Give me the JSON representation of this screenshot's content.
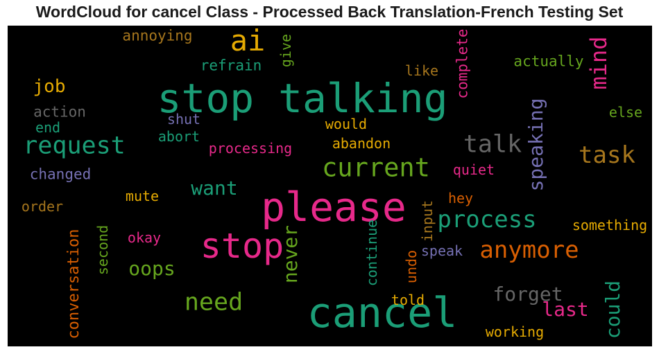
{
  "title": "WordCloud for cancel Class - Processed Back Translation-French Testing Set",
  "colors": {
    "green": "#1b9e77",
    "pink": "#e7298a",
    "orange": "#d95f02",
    "purple": "#7570b3",
    "lime": "#66a61e",
    "yellow": "#e6ab02",
    "brown": "#a6761d",
    "gray": "#666666",
    "background": "#000000"
  },
  "chart_data": {
    "type": "wordcloud",
    "words": [
      {
        "text": "cancel",
        "color": "#1b9e77",
        "size": 60,
        "rotate": false
      },
      {
        "text": "stop talking",
        "color": "#1b9e77",
        "size": 58,
        "rotate": false
      },
      {
        "text": "please",
        "color": "#e7298a",
        "size": 58,
        "rotate": false
      },
      {
        "text": "stop",
        "color": "#e7298a",
        "size": 50,
        "rotate": false
      },
      {
        "text": "ai",
        "color": "#e6ab02",
        "size": 42,
        "rotate": false
      },
      {
        "text": "current",
        "color": "#66a61e",
        "size": 37,
        "rotate": false
      },
      {
        "text": "request",
        "color": "#1b9e77",
        "size": 35,
        "rotate": false
      },
      {
        "text": "need",
        "color": "#66a61e",
        "size": 35,
        "rotate": false
      },
      {
        "text": "talk",
        "color": "#666666",
        "size": 35,
        "rotate": false
      },
      {
        "text": "process",
        "color": "#1b9e77",
        "size": 34,
        "rotate": false
      },
      {
        "text": "anymore",
        "color": "#d95f02",
        "size": 34,
        "rotate": false
      },
      {
        "text": "task",
        "color": "#a6761d",
        "size": 34,
        "rotate": false
      },
      {
        "text": "mind",
        "color": "#e7298a",
        "size": 32,
        "rotate": true
      },
      {
        "text": "speaking",
        "color": "#7570b3",
        "size": 28,
        "rotate": true
      },
      {
        "text": "forget",
        "color": "#666666",
        "size": 28,
        "rotate": false
      },
      {
        "text": "want",
        "color": "#1b9e77",
        "size": 28,
        "rotate": false
      },
      {
        "text": "oops",
        "color": "#66a61e",
        "size": 28,
        "rotate": false
      },
      {
        "text": "last",
        "color": "#e7298a",
        "size": 28,
        "rotate": false
      },
      {
        "text": "never",
        "color": "#66a61e",
        "size": 28,
        "rotate": true
      },
      {
        "text": "could",
        "color": "#1b9e77",
        "size": 28,
        "rotate": true
      },
      {
        "text": "job",
        "color": "#e6ab02",
        "size": 26,
        "rotate": false
      },
      {
        "text": "conversation",
        "color": "#d95f02",
        "size": 22,
        "rotate": true
      },
      {
        "text": "actually",
        "color": "#66a61e",
        "size": 21,
        "rotate": false
      },
      {
        "text": "complete",
        "color": "#e7298a",
        "size": 21,
        "rotate": true
      },
      {
        "text": "refrain",
        "color": "#1b9e77",
        "size": 21,
        "rotate": false
      },
      {
        "text": "annoying",
        "color": "#a6761d",
        "size": 21,
        "rotate": false
      },
      {
        "text": "action",
        "color": "#666666",
        "size": 21,
        "rotate": false
      },
      {
        "text": "changed",
        "color": "#7570b3",
        "size": 21,
        "rotate": false
      },
      {
        "text": "something",
        "color": "#e6ab02",
        "size": 20,
        "rotate": false
      },
      {
        "text": "working",
        "color": "#e6ab02",
        "size": 20,
        "rotate": false
      },
      {
        "text": "continue",
        "color": "#1b9e77",
        "size": 20,
        "rotate": true
      },
      {
        "text": "second",
        "color": "#66a61e",
        "size": 20,
        "rotate": true
      },
      {
        "text": "give",
        "color": "#66a61e",
        "size": 20,
        "rotate": true
      },
      {
        "text": "like",
        "color": "#a6761d",
        "size": 20,
        "rotate": false
      },
      {
        "text": "else",
        "color": "#66a61e",
        "size": 20,
        "rotate": false
      },
      {
        "text": "end",
        "color": "#1b9e77",
        "size": 20,
        "rotate": false
      },
      {
        "text": "shut",
        "color": "#7570b3",
        "size": 20,
        "rotate": false
      },
      {
        "text": "abort",
        "color": "#1b9e77",
        "size": 20,
        "rotate": false
      },
      {
        "text": "processing",
        "color": "#e7298a",
        "size": 20,
        "rotate": false
      },
      {
        "text": "would",
        "color": "#e6ab02",
        "size": 20,
        "rotate": false
      },
      {
        "text": "abandon",
        "color": "#e6ab02",
        "size": 20,
        "rotate": false
      },
      {
        "text": "quiet",
        "color": "#e7298a",
        "size": 20,
        "rotate": false
      },
      {
        "text": "hey",
        "color": "#d95f02",
        "size": 20,
        "rotate": false
      },
      {
        "text": "mute",
        "color": "#e6ab02",
        "size": 20,
        "rotate": false
      },
      {
        "text": "order",
        "color": "#a6761d",
        "size": 20,
        "rotate": false
      },
      {
        "text": "okay",
        "color": "#e7298a",
        "size": 20,
        "rotate": false
      },
      {
        "text": "input",
        "color": "#a6761d",
        "size": 20,
        "rotate": true
      },
      {
        "text": "undo",
        "color": "#d95f02",
        "size": 20,
        "rotate": true
      },
      {
        "text": "speak",
        "color": "#7570b3",
        "size": 20,
        "rotate": false
      },
      {
        "text": "told",
        "color": "#e6ab02",
        "size": 20,
        "rotate": false
      }
    ]
  }
}
